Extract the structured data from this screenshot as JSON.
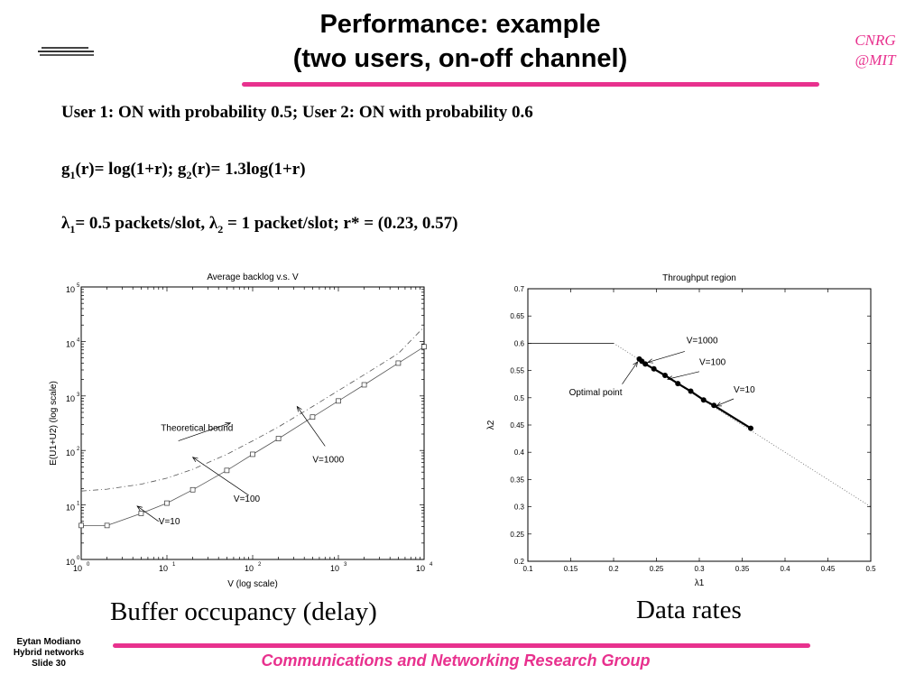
{
  "header": {
    "title_line1": "Performance: example",
    "title_line2": "(two users, on-off channel)",
    "org_line1": "CNRG",
    "org_line2": "@MIT"
  },
  "body": {
    "line1": "User 1: ON with probability 0.5; User 2: ON with probability 0.6",
    "line2": {
      "p1": "g",
      "s1": "1",
      "p2": "(r)= log(1+r); g",
      "s2": "2",
      "p3": "(r)= 1.3log(1+r)"
    },
    "line3": {
      "p1": "λ",
      "s1": "1",
      "p2": "= 0.5 packets/slot, λ",
      "s2": "2",
      "p3": " = 1 packet/slot;  r* = (0.23, 0.57)"
    }
  },
  "captions": {
    "left": "Buffer occupancy (delay)",
    "right": "Data rates"
  },
  "footer": {
    "author": "Eytan Modiano",
    "course": "Hybrid networks",
    "slide": "Slide 30",
    "group": "Communications and Networking Research Group"
  },
  "colors": {
    "accent": "#e8318e"
  },
  "chart_data": [
    {
      "type": "line",
      "title": "Average backlog v.s. V",
      "xlabel": "V (log scale)",
      "ylabel": "E(U1+U2) (log scale)",
      "xscale": "log",
      "yscale": "log",
      "xlim": [
        1,
        10000
      ],
      "ylim": [
        1,
        100000
      ],
      "xticks": [
        {
          "v": 1,
          "b": "10",
          "e": "0"
        },
        {
          "v": 10,
          "b": "10",
          "e": "1"
        },
        {
          "v": 100,
          "b": "10",
          "e": "2"
        },
        {
          "v": 1000,
          "b": "10",
          "e": "3"
        },
        {
          "v": 10000,
          "b": "10",
          "e": "4"
        }
      ],
      "yticks": [
        {
          "v": 1,
          "b": "10",
          "e": "0"
        },
        {
          "v": 10,
          "b": "10",
          "e": "1"
        },
        {
          "v": 100,
          "b": "10",
          "e": "2"
        },
        {
          "v": 1000,
          "b": "10",
          "e": "3"
        },
        {
          "v": 10000,
          "b": "10",
          "e": "4"
        },
        {
          "v": 100000,
          "b": "10",
          "e": "5"
        }
      ],
      "series": [
        {
          "style": "solid-square-markers",
          "x": [
            1,
            2,
            5,
            10,
            20,
            50,
            100,
            200,
            500,
            1000,
            2000,
            5000,
            10000
          ],
          "y": [
            4.2,
            4.2,
            7,
            10.8,
            19,
            43,
            85,
            165,
            410,
            810,
            1600,
            4000,
            8000
          ]
        },
        {
          "style": "dash-dot",
          "x": [
            1,
            2,
            5,
            10,
            20,
            50,
            100,
            200,
            500,
            1000,
            2000,
            5000,
            10000
          ],
          "y": [
            18,
            19.5,
            24,
            31,
            45,
            85,
            150,
            270,
            640,
            1250,
            2450,
            6000,
            18500
          ]
        }
      ],
      "annotations": [
        {
          "text": "Theoretical bound",
          "x": 8.5,
          "y": 230
        },
        {
          "text": "V=1000",
          "x": 500,
          "y": 60
        },
        {
          "text": "V=100",
          "x": 60,
          "y": 11.5
        },
        {
          "text": "V=10",
          "x": 8,
          "y": 4.4
        }
      ]
    },
    {
      "type": "line",
      "title": "Throughput region",
      "xlabel": "λ1",
      "ylabel": "λ2",
      "xlim": [
        0.1,
        0.5
      ],
      "ylim": [
        0.2,
        0.7
      ],
      "xticks": [
        "0.1",
        "0.15",
        "0.2",
        "0.25",
        "0.3",
        "0.35",
        "0.4",
        "0.45",
        "0.5"
      ],
      "yticks": [
        "0.2",
        "0.25",
        "0.3",
        "0.35",
        "0.4",
        "0.45",
        "0.5",
        "0.55",
        "0.6",
        "0.65",
        "0.7"
      ],
      "series": [
        {
          "style": "solid",
          "x": [
            0.1,
            0.2
          ],
          "y": [
            0.6,
            0.6
          ]
        },
        {
          "style": "dotted",
          "x": [
            0.2,
            0.5
          ],
          "y": [
            0.6,
            0.3
          ]
        },
        {
          "style": "solid",
          "x": [
            0.5,
            0.5
          ],
          "y": [
            0.3,
            0.2
          ]
        },
        {
          "style": "thick-dots",
          "x": [
            0.23,
            0.233,
            0.237,
            0.247,
            0.26,
            0.275,
            0.29,
            0.305,
            0.317,
            0.36
          ],
          "y": [
            0.571,
            0.567,
            0.562,
            0.553,
            0.541,
            0.526,
            0.512,
            0.496,
            0.486,
            0.444
          ]
        }
      ],
      "annotations": [
        {
          "text": "V=1000",
          "x": 0.285,
          "y": 0.6
        },
        {
          "text": "V=100",
          "x": 0.3,
          "y": 0.56
        },
        {
          "text": "V=10",
          "x": 0.34,
          "y": 0.51
        },
        {
          "text": "Optimal point",
          "x": 0.148,
          "y": 0.505
        }
      ]
    }
  ]
}
